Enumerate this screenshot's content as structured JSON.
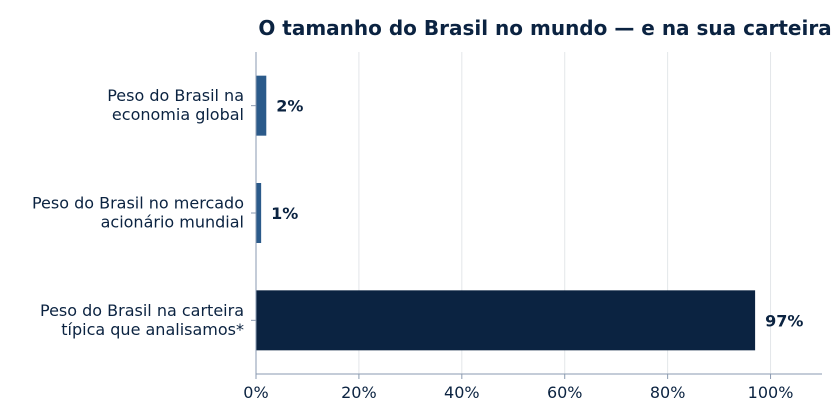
{
  "chart_data": {
    "type": "bar",
    "orientation": "horizontal",
    "title": "O tamanho do Brasil no mundo — e na sua carteira",
    "xlabel": "",
    "ylabel": "",
    "categories": [
      [
        "Peso do Brasil na",
        "economia global"
      ],
      [
        "Peso do Brasil no mercado",
        "acionário mundial"
      ],
      [
        "Peso do Brasil na carteira",
        "típica que analisamos*"
      ]
    ],
    "values": [
      2,
      1,
      97
    ],
    "value_labels": [
      "2%",
      "1%",
      "97%"
    ],
    "xlim": [
      0,
      110
    ],
    "xticks": [
      0,
      20,
      40,
      60,
      80,
      100
    ],
    "xtick_labels": [
      "0%",
      "20%",
      "40%",
      "60%",
      "80%",
      "100%"
    ],
    "grid": "vertical",
    "colors": {
      "bars": [
        "#2b5a8a",
        "#2b5a8a",
        "#0b2341"
      ],
      "text": "#0b2341",
      "grid": "#e3e6ea",
      "axis": "#8a9ab0"
    }
  }
}
